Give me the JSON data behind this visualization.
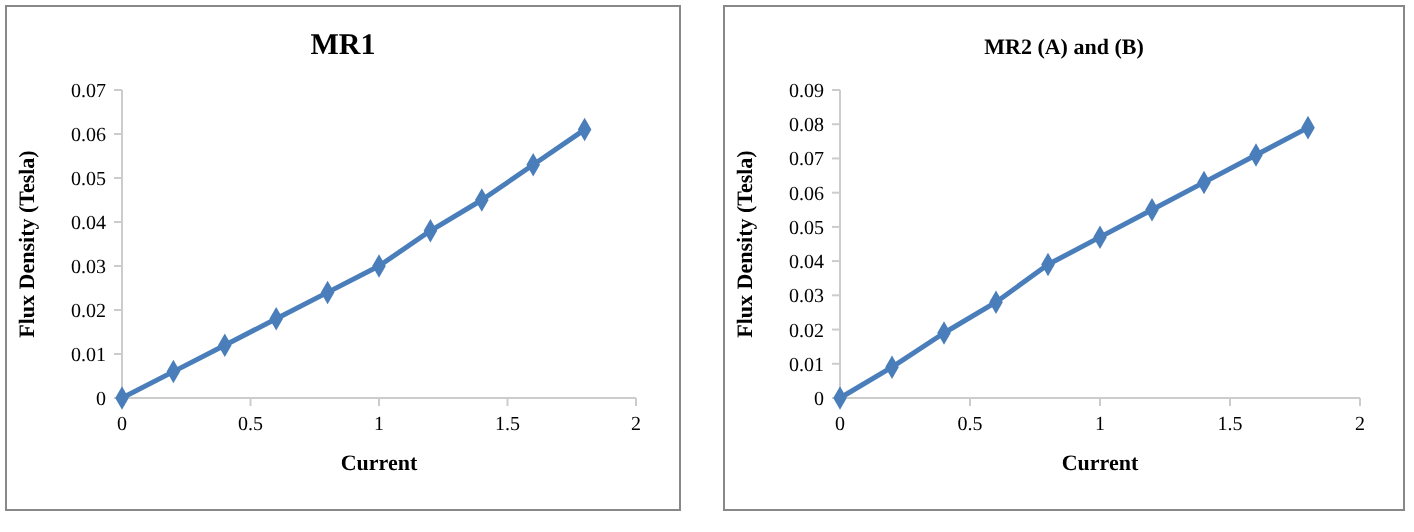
{
  "chart_data": [
    {
      "type": "line",
      "title": "MR1",
      "xlabel": "Current",
      "ylabel": "Flux Density (Tesla)",
      "x": [
        0,
        0.2,
        0.4,
        0.6,
        0.8,
        1,
        1.2,
        1.4,
        1.6,
        1.8
      ],
      "series": [
        {
          "color": "#4a7ebb",
          "values": [
            0,
            0.006,
            0.012,
            0.018,
            0.024,
            0.03,
            0.038,
            0.045,
            0.053,
            0.061
          ]
        }
      ],
      "xlim": [
        0,
        2
      ],
      "xticks": [
        0,
        0.5,
        1,
        1.5,
        2
      ],
      "ylim": [
        0,
        0.07
      ],
      "yticks": [
        0,
        0.01,
        0.02,
        0.03,
        0.04,
        0.05,
        0.06,
        0.07
      ],
      "marker": "diamond",
      "grid": false
    },
    {
      "type": "line",
      "title": "MR2 (A) and (B)",
      "xlabel": "Current",
      "ylabel": "Flux Density (Tesla)",
      "x": [
        0,
        0.2,
        0.4,
        0.6,
        0.8,
        1,
        1.2,
        1.4,
        1.6,
        1.8
      ],
      "series": [
        {
          "color": "#4a7ebb",
          "values": [
            0,
            0.009,
            0.019,
            0.028,
            0.039,
            0.047,
            0.055,
            0.063,
            0.071,
            0.079
          ]
        }
      ],
      "xlim": [
        0,
        2
      ],
      "xticks": [
        0,
        0.5,
        1,
        1.5,
        2
      ],
      "ylim": [
        0,
        0.09
      ],
      "yticks": [
        0,
        0.01,
        0.02,
        0.03,
        0.04,
        0.05,
        0.06,
        0.07,
        0.08,
        0.09
      ],
      "marker": "diamond",
      "grid": false
    }
  ]
}
